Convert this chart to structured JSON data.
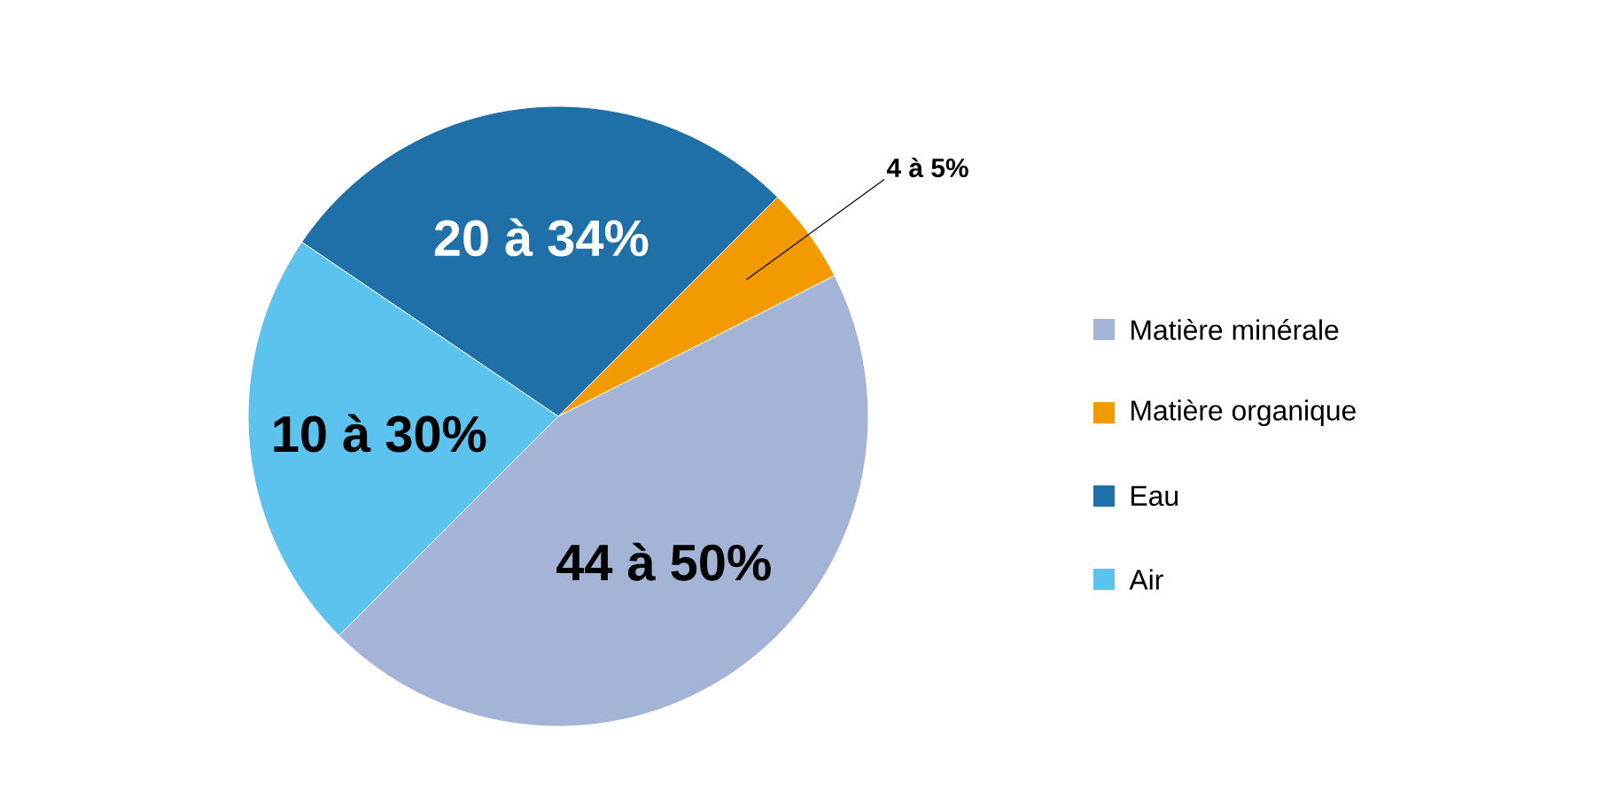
{
  "chart_data": {
    "type": "pie",
    "categories": [
      "Matière minérale",
      "Matière organique",
      "Eau",
      "Air"
    ],
    "values": [
      45,
      5,
      28,
      22
    ],
    "annotations": [
      "44 à 50%",
      "4 à 5%",
      "20 à 34%",
      "10 à 30%"
    ],
    "colors": [
      "#a3b4d6",
      "#f29a00",
      "#1f6fa8",
      "#5cc3ee"
    ],
    "legend": "right"
  }
}
